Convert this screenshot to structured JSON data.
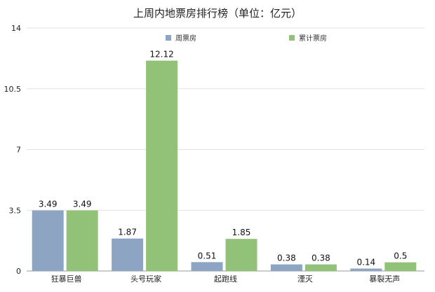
{
  "chart_data": {
    "type": "bar",
    "title": "上周内地票房排行榜（单位：亿元）",
    "xlabel": "",
    "ylabel": "",
    "categories": [
      "狂暴巨兽",
      "头号玩家",
      "起跑线",
      "湮灭",
      "暴裂无声"
    ],
    "series": [
      {
        "name": "周票房",
        "values": [
          3.49,
          1.87,
          0.51,
          0.38,
          0.14
        ],
        "labels": [
          "3.49",
          "1.87",
          "0.51",
          "0.38",
          "0.14"
        ],
        "color": "#8ea4c3"
      },
      {
        "name": "累计票房",
        "values": [
          3.49,
          12.12,
          1.85,
          0.38,
          0.5
        ],
        "labels": [
          "3.49",
          "12.12",
          "1.85",
          "0.38",
          "0.5"
        ],
        "color": "#92c277"
      }
    ],
    "ylim": [
      0,
      14
    ],
    "yticks": [
      "0",
      "3.5",
      "7",
      "10.5",
      "14"
    ],
    "grid": true,
    "legend_position": "top-center"
  }
}
